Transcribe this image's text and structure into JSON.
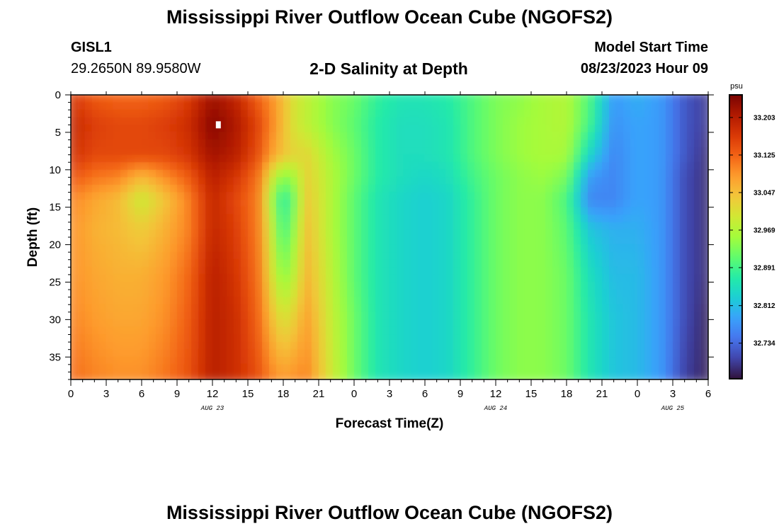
{
  "header": {
    "title": "Mississippi River Outflow Ocean Cube (NGOFS2)",
    "station_id": "GISL1",
    "station_coords": "29.2650N  89.9580W",
    "plot_title": "2-D Salinity at Depth",
    "model_start_label": "Model Start Time",
    "model_start_value": "08/23/2023 Hour 09"
  },
  "footer": {
    "title": "Mississippi River Outflow Ocean Cube (NGOFS2)"
  },
  "chart_data": {
    "type": "heatmap",
    "title": "2-D Salinity at Depth",
    "xlabel": "Forecast Time(Z)",
    "ylabel": "Depth (ft)",
    "x_unit": "hours since 08/23 00Z",
    "x_range": [
      0,
      54
    ],
    "y_range": [
      0,
      38
    ],
    "y_reversed": true,
    "xtick_values": [
      0,
      3,
      6,
      9,
      12,
      15,
      18,
      21,
      24,
      27,
      30,
      33,
      36,
      39,
      42,
      45,
      48,
      51,
      54
    ],
    "xtick_labels": [
      "0",
      "3",
      "6",
      "9",
      "12",
      "15",
      "18",
      "21",
      "0",
      "3",
      "6",
      "9",
      "12",
      "15",
      "18",
      "21",
      "0",
      "3",
      "6"
    ],
    "date_labels": [
      {
        "hour": 12,
        "label": "AUG 23"
      },
      {
        "hour": 36,
        "label": "AUG 24"
      },
      {
        "hour": 51,
        "label": "AUG 25"
      }
    ],
    "ytick_values": [
      0,
      5,
      10,
      15,
      20,
      25,
      30,
      35
    ],
    "ytick_labels": [
      "0",
      "5",
      "10",
      "15",
      "20",
      "25",
      "30",
      "35"
    ],
    "colorbar": {
      "unit": "psu",
      "min": 32.66,
      "max": 33.25,
      "tick_values": [
        33.203,
        33.125,
        33.047,
        32.969,
        32.891,
        32.812,
        32.734
      ],
      "tick_labels": [
        "33.203",
        "33.125",
        "33.047",
        "32.969",
        "32.891",
        "32.812",
        "32.734"
      ],
      "colormap": "turbo"
    },
    "time_hours": [
      0,
      2,
      4,
      6,
      8,
      10,
      12,
      14,
      16,
      17,
      18,
      19,
      20,
      22,
      24,
      26,
      28,
      30,
      32,
      34,
      36,
      38,
      40,
      42,
      44,
      46,
      48,
      50,
      52,
      54
    ],
    "depth_ft": [
      0,
      4,
      8,
      11,
      14,
      18,
      24,
      30,
      38
    ],
    "salinity_psu": [
      [
        33.17,
        33.13,
        33.12,
        33.12,
        33.13,
        33.16,
        33.22,
        33.19,
        33.12,
        33.09,
        33.05,
        33.0,
        32.98,
        32.94,
        32.92,
        32.88,
        32.86,
        32.86,
        32.87,
        32.9,
        32.93,
        32.94,
        32.96,
        32.97,
        32.9,
        32.78,
        32.8,
        32.78,
        32.72,
        32.69
      ],
      [
        33.19,
        33.16,
        33.15,
        33.15,
        33.16,
        33.18,
        33.24,
        33.21,
        33.15,
        33.1,
        33.05,
        33.0,
        32.98,
        32.94,
        32.91,
        32.87,
        32.85,
        32.85,
        32.86,
        32.9,
        32.93,
        32.95,
        32.96,
        32.97,
        32.89,
        32.77,
        32.79,
        32.78,
        32.72,
        32.69
      ],
      [
        33.18,
        33.15,
        33.15,
        33.15,
        33.15,
        33.17,
        33.22,
        33.2,
        33.14,
        33.08,
        33.04,
        33.02,
        33.02,
        32.96,
        32.92,
        32.87,
        32.85,
        32.85,
        32.86,
        32.9,
        32.93,
        32.95,
        32.96,
        32.96,
        32.84,
        32.76,
        32.79,
        32.78,
        32.72,
        32.68
      ],
      [
        33.14,
        33.11,
        33.1,
        33.05,
        33.09,
        33.13,
        33.2,
        33.17,
        33.11,
        33.0,
        32.93,
        32.96,
        33.03,
        32.97,
        32.92,
        32.87,
        32.85,
        32.84,
        32.85,
        32.89,
        32.92,
        32.94,
        32.95,
        32.93,
        32.78,
        32.76,
        32.79,
        32.78,
        32.71,
        32.68
      ],
      [
        33.1,
        33.07,
        33.05,
        32.99,
        33.04,
        33.1,
        33.19,
        33.15,
        33.1,
        32.96,
        32.86,
        32.93,
        33.04,
        32.97,
        32.91,
        32.86,
        32.84,
        32.83,
        32.84,
        32.88,
        32.92,
        32.94,
        32.94,
        32.9,
        32.76,
        32.76,
        32.79,
        32.78,
        32.71,
        32.68
      ],
      [
        33.09,
        33.06,
        33.05,
        33.03,
        33.06,
        33.1,
        33.19,
        33.16,
        33.1,
        32.99,
        32.88,
        32.95,
        33.05,
        32.97,
        32.91,
        32.86,
        32.84,
        32.83,
        32.84,
        32.88,
        32.92,
        32.94,
        32.94,
        32.91,
        32.82,
        32.8,
        32.8,
        32.78,
        32.71,
        32.68
      ],
      [
        33.09,
        33.07,
        33.06,
        33.06,
        33.08,
        33.12,
        33.2,
        33.17,
        33.11,
        33.01,
        32.93,
        32.98,
        33.06,
        32.98,
        32.91,
        32.86,
        32.84,
        32.83,
        32.84,
        32.88,
        32.92,
        32.94,
        32.94,
        32.92,
        32.85,
        32.81,
        32.81,
        32.78,
        32.71,
        32.68
      ],
      [
        33.1,
        33.08,
        33.07,
        33.07,
        33.09,
        33.13,
        33.2,
        33.18,
        33.12,
        33.05,
        33.0,
        33.03,
        33.08,
        32.99,
        32.92,
        32.86,
        32.84,
        32.83,
        32.84,
        32.88,
        32.92,
        32.94,
        32.94,
        32.92,
        32.86,
        32.82,
        32.81,
        32.78,
        32.71,
        32.67
      ],
      [
        33.12,
        33.1,
        33.09,
        33.09,
        33.11,
        33.14,
        33.2,
        33.18,
        33.14,
        33.1,
        33.08,
        33.09,
        33.1,
        33.0,
        32.92,
        32.86,
        32.84,
        32.83,
        32.84,
        32.88,
        32.92,
        32.94,
        32.94,
        32.92,
        32.86,
        32.82,
        32.81,
        32.78,
        32.7,
        32.67
      ]
    ],
    "marker": {
      "hour": 12.5,
      "depth": 4
    }
  }
}
